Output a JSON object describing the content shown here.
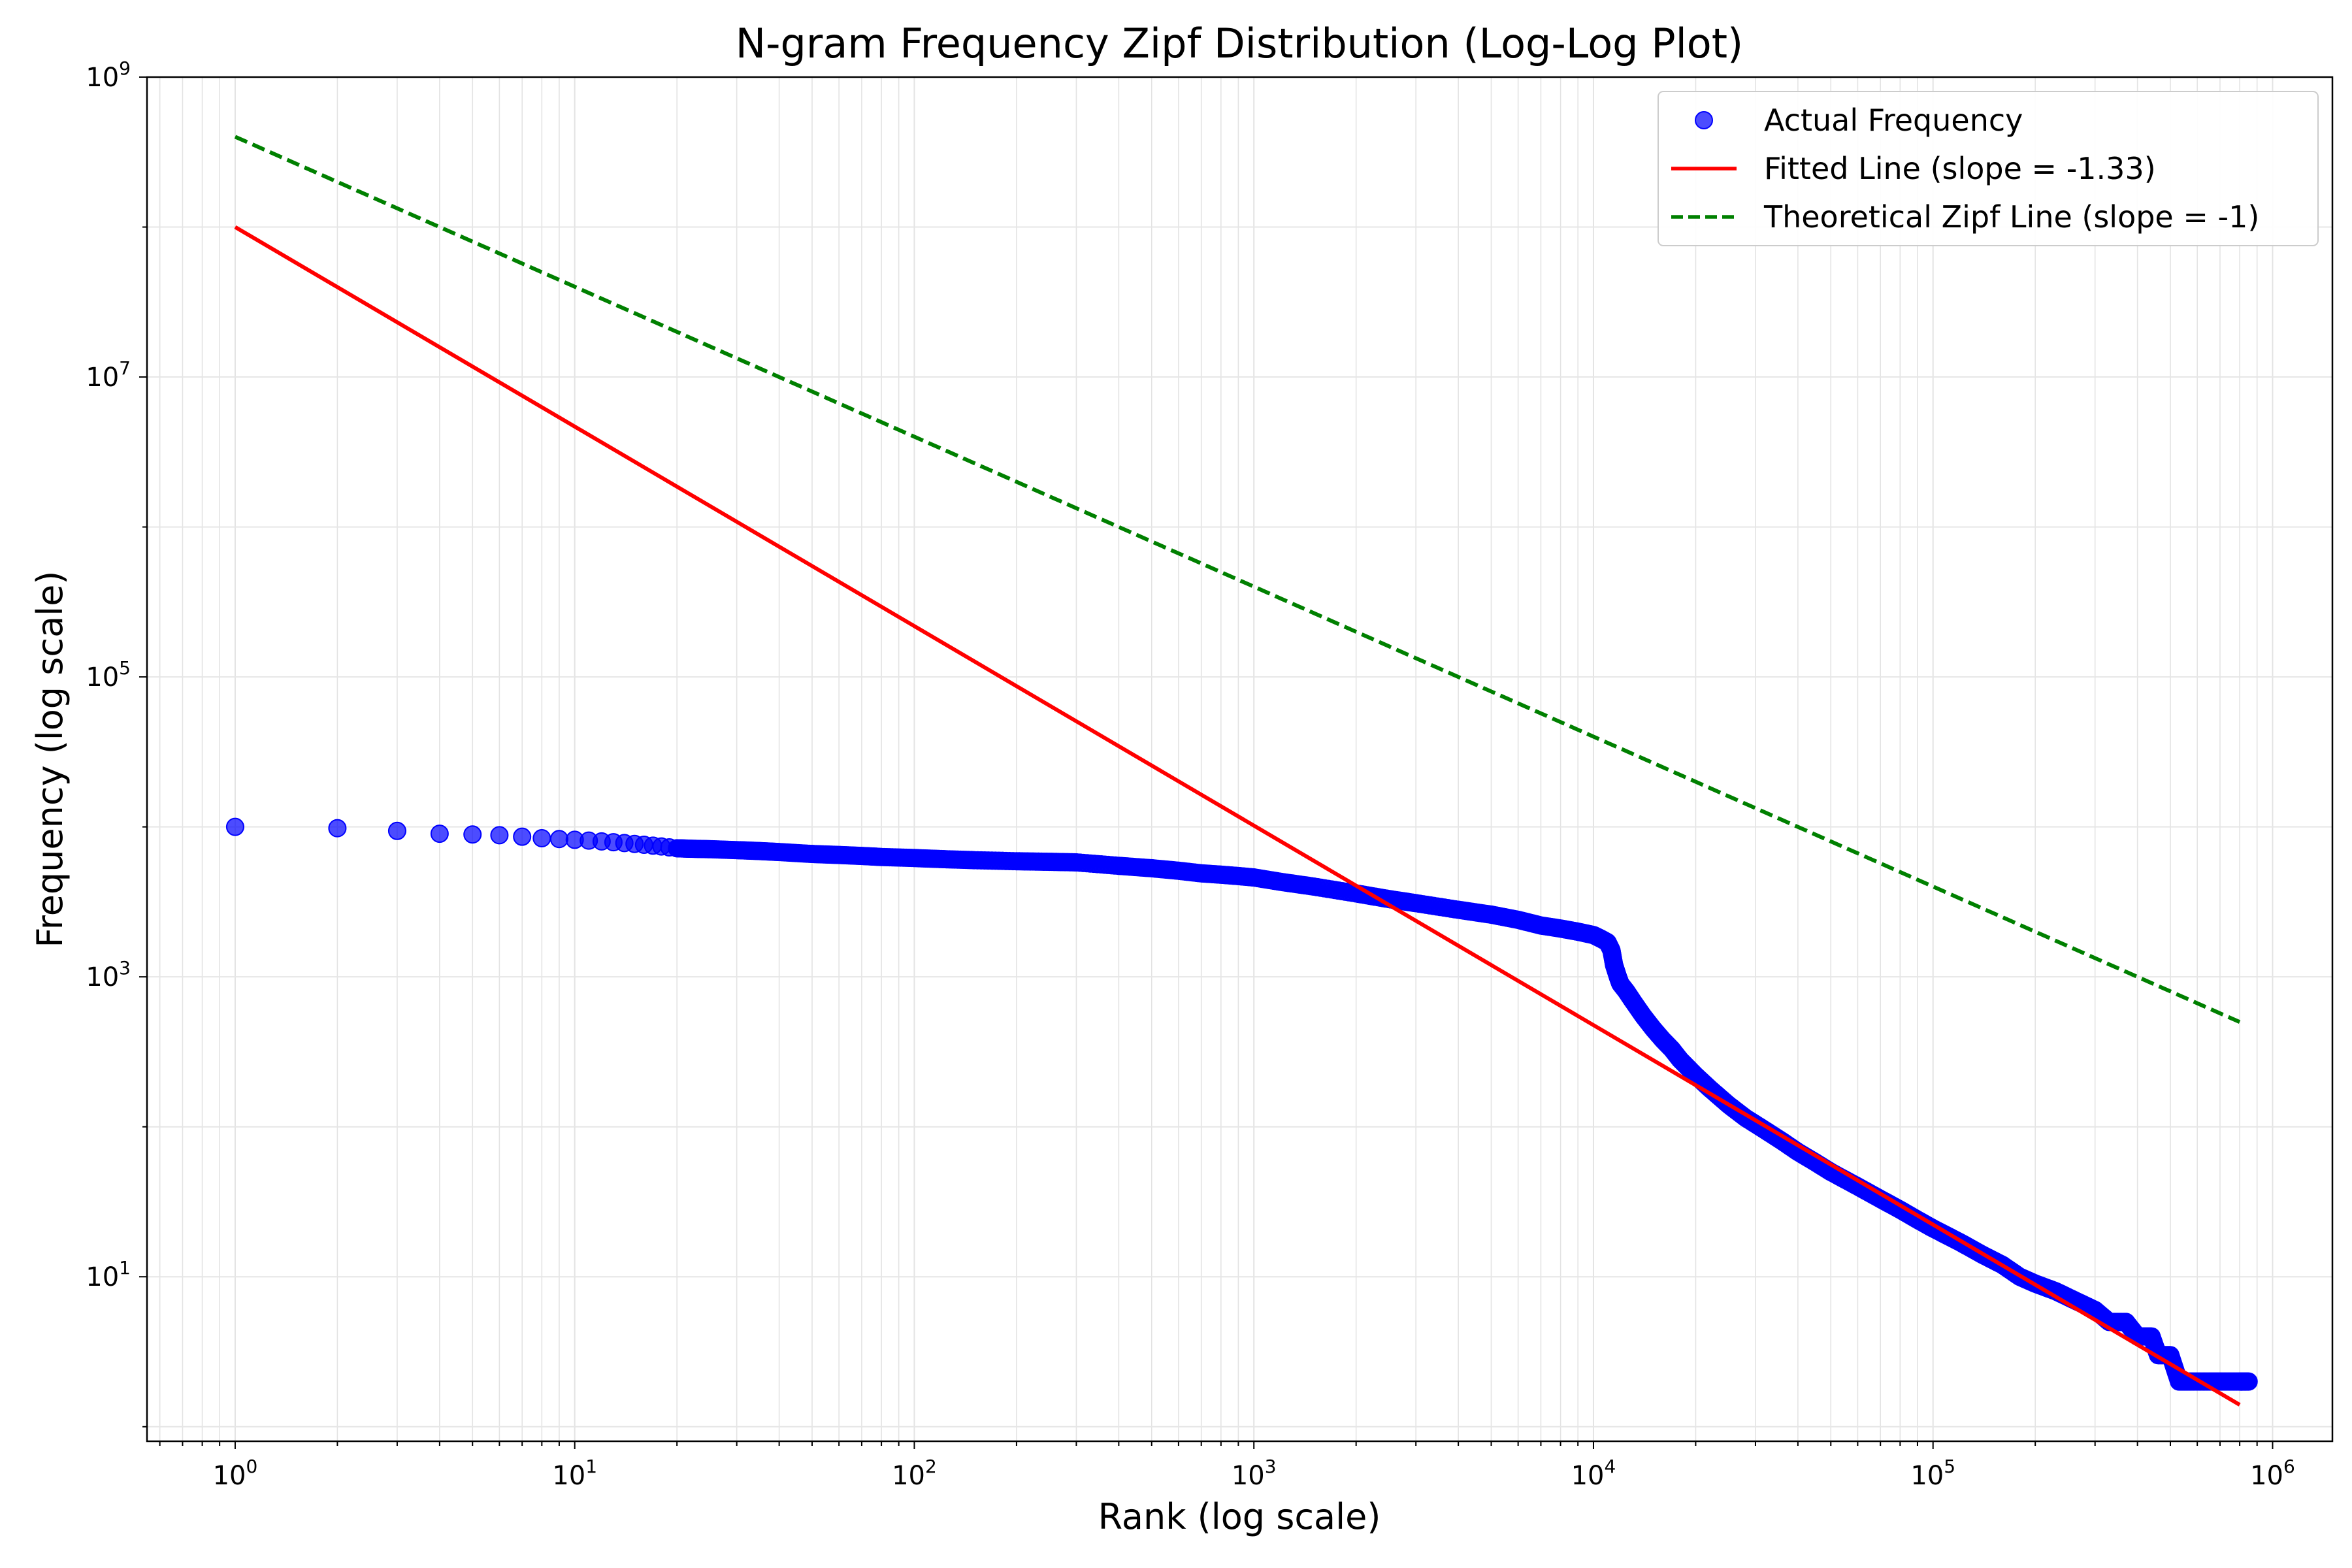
{
  "chart_data": {
    "type": "scatter",
    "title": "N-gram Frequency Zipf Distribution (Log-Log Plot)",
    "xlabel": "Rank (log scale)",
    "ylabel": "Frequency (log scale)",
    "xscale": "log",
    "yscale": "log",
    "xlim": [
      0.55,
      1500000
    ],
    "ylim": [
      0.8,
      1000000000
    ],
    "xticks": [
      {
        "value": 1,
        "base": "10",
        "exp": "0"
      },
      {
        "value": 10,
        "base": "10",
        "exp": "1"
      },
      {
        "value": 100,
        "base": "10",
        "exp": "2"
      },
      {
        "value": 1000,
        "base": "10",
        "exp": "3"
      },
      {
        "value": 10000,
        "base": "10",
        "exp": "4"
      },
      {
        "value": 100000,
        "base": "10",
        "exp": "5"
      },
      {
        "value": 1000000,
        "base": "10",
        "exp": "6"
      }
    ],
    "yticks": [
      {
        "value": 10,
        "base": "10",
        "exp": "1"
      },
      {
        "value": 1000,
        "base": "10",
        "exp": "3"
      },
      {
        "value": 100000,
        "base": "10",
        "exp": "5"
      },
      {
        "value": 10000000,
        "base": "10",
        "exp": "7"
      },
      {
        "value": 1000000000,
        "base": "10",
        "exp": "9"
      }
    ],
    "grid": true,
    "legend_position": "top-right",
    "series": [
      {
        "name": "Actual Frequency",
        "type": "scatter",
        "color": "#0000ff",
        "points": [
          [
            1,
            10000
          ],
          [
            2,
            9800
          ],
          [
            3,
            9400
          ],
          [
            4,
            9000
          ],
          [
            5,
            8900
          ],
          [
            6,
            8800
          ],
          [
            7,
            8600
          ],
          [
            8,
            8400
          ],
          [
            9,
            8300
          ],
          [
            10,
            8200
          ],
          [
            11,
            8100
          ],
          [
            12,
            8000
          ],
          [
            13,
            7900
          ],
          [
            14,
            7800
          ],
          [
            15,
            7700
          ],
          [
            16,
            7600
          ],
          [
            17,
            7500
          ],
          [
            18,
            7400
          ],
          [
            19,
            7300
          ],
          [
            20,
            7200
          ],
          [
            22,
            7150
          ],
          [
            25,
            7100
          ],
          [
            30,
            7000
          ],
          [
            35,
            6900
          ],
          [
            40,
            6800
          ],
          [
            50,
            6600
          ],
          [
            60,
            6500
          ],
          [
            70,
            6400
          ],
          [
            80,
            6300
          ],
          [
            100,
            6200
          ],
          [
            120,
            6100
          ],
          [
            150,
            6000
          ],
          [
            200,
            5900
          ],
          [
            250,
            5850
          ],
          [
            300,
            5800
          ],
          [
            400,
            5500
          ],
          [
            500,
            5300
          ],
          [
            600,
            5100
          ],
          [
            700,
            4900
          ],
          [
            800,
            4800
          ],
          [
            900,
            4700
          ],
          [
            1000,
            4600
          ],
          [
            1200,
            4300
          ],
          [
            1500,
            4000
          ],
          [
            2000,
            3600
          ],
          [
            2500,
            3300
          ],
          [
            3000,
            3100
          ],
          [
            4000,
            2800
          ],
          [
            5000,
            2600
          ],
          [
            6000,
            2400
          ],
          [
            7000,
            2200
          ],
          [
            8000,
            2100
          ],
          [
            9000,
            2000
          ],
          [
            10000,
            1900
          ],
          [
            10500,
            1800
          ],
          [
            11000,
            1700
          ],
          [
            11300,
            1500
          ],
          [
            11500,
            1200
          ],
          [
            11800,
            1000
          ],
          [
            12000,
            900
          ],
          [
            12500,
            800
          ],
          [
            13000,
            700
          ],
          [
            14000,
            550
          ],
          [
            15000,
            450
          ],
          [
            16000,
            380
          ],
          [
            17000,
            330
          ],
          [
            18000,
            280
          ],
          [
            20000,
            220
          ],
          [
            22000,
            180
          ],
          [
            25000,
            140
          ],
          [
            28000,
            115
          ],
          [
            32000,
            95
          ],
          [
            36000,
            80
          ],
          [
            40000,
            68
          ],
          [
            45000,
            58
          ],
          [
            50000,
            50
          ],
          [
            60000,
            40
          ],
          [
            70000,
            33
          ],
          [
            80000,
            28
          ],
          [
            90000,
            24
          ],
          [
            100000,
            21
          ],
          [
            120000,
            17
          ],
          [
            140000,
            14
          ],
          [
            160000,
            12
          ],
          [
            180000,
            10
          ],
          [
            200000,
            9
          ],
          [
            230000,
            8
          ],
          [
            260000,
            7
          ],
          [
            300000,
            6
          ],
          [
            330000,
            5
          ],
          [
            370000,
            5
          ],
          [
            400000,
            4
          ],
          [
            440000,
            4
          ],
          [
            460000,
            3
          ],
          [
            500000,
            3
          ],
          [
            530000,
            2
          ],
          [
            580000,
            2
          ],
          [
            650000,
            2
          ],
          [
            720000,
            2
          ],
          [
            800000,
            2
          ],
          [
            850000,
            2
          ]
        ]
      },
      {
        "name": "Fitted Line (slope = -1.33)",
        "type": "line",
        "color": "#ff0000",
        "style": "solid",
        "points": [
          [
            1,
            100000000
          ],
          [
            800000,
            1.4
          ]
        ]
      },
      {
        "name": "Theoretical Zipf Line (slope = -1)",
        "type": "line",
        "color": "#008000",
        "style": "dashed",
        "points": [
          [
            1,
            400000000
          ],
          [
            800000,
            500
          ]
        ]
      }
    ]
  }
}
